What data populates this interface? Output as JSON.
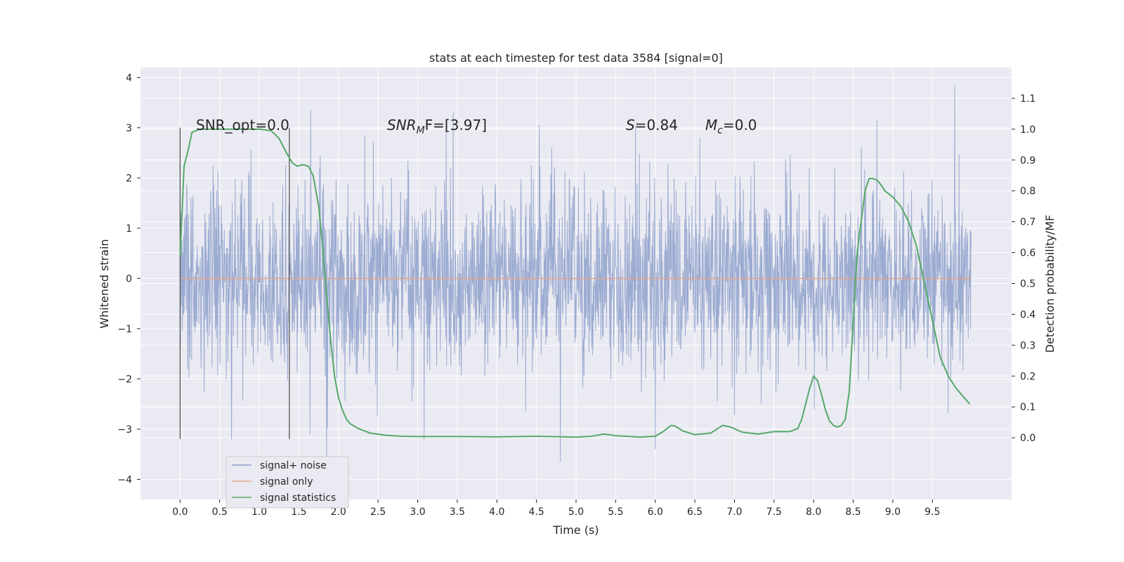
{
  "chart_data": {
    "type": "line",
    "title": "stats at each timestep for test data 3584 [signal=0]",
    "xlabel": "Time (s)",
    "ylabel": "Whitened strain",
    "y2label": "Detection probability/MF",
    "xlim": [
      -0.5,
      10.5
    ],
    "ylim": [
      -4.4,
      4.2
    ],
    "y2lim": [
      -0.2,
      1.2
    ],
    "grid": true,
    "legend_position": "lower-left",
    "x_ticks": [
      "0.0",
      "0.5",
      "1.0",
      "1.5",
      "2.0",
      "2.5",
      "3.0",
      "3.5",
      "4.0",
      "4.5",
      "5.0",
      "5.5",
      "6.0",
      "6.5",
      "7.0",
      "7.5",
      "8.0",
      "8.5",
      "9.0",
      "9.5"
    ],
    "y_ticks": [
      "4",
      "3",
      "2",
      "1",
      "0",
      "−1",
      "−2",
      "−3",
      "−4"
    ],
    "y2_ticks": [
      "1.1",
      "1.0",
      "0.9",
      "0.8",
      "0.7",
      "0.6",
      "0.5",
      "0.4",
      "0.3",
      "0.2",
      "0.1",
      "0.0"
    ],
    "annotations": {
      "snr_opt": "SNR_opt=0.0",
      "snr_mf_prefix": "SNR",
      "snr_mf_sub": "M",
      "snr_mf_suffix": "F=[3.97]",
      "s_prefix": "S",
      "s_suffix": "=0.84",
      "mc_prefix": "M",
      "mc_sub": "c",
      "mc_suffix": "=0.0"
    },
    "vertical_lines": [
      {
        "x": 0.0,
        "y_from": -3.2,
        "y_to": 3.0
      },
      {
        "x": 1.38,
        "y_from": -3.2,
        "y_to": 3.0
      }
    ],
    "series": [
      {
        "name": "signal+ noise",
        "color": "#8da0cb",
        "axis": "left",
        "kind": "noise",
        "x_range": [
          0.0,
          9.99
        ],
        "amplitude_std": 0.9,
        "peaks": [
          {
            "x": 1.85,
            "y": -4.0
          },
          {
            "x": 4.8,
            "y": -3.65
          },
          {
            "x": 9.78,
            "y": 3.85
          },
          {
            "x": 3.45,
            "y": 3.3
          },
          {
            "x": 1.65,
            "y": 3.35
          },
          {
            "x": 6.0,
            "y": -3.4
          },
          {
            "x": 5.75,
            "y": 3.05
          },
          {
            "x": 8.8,
            "y": 3.15
          }
        ]
      },
      {
        "name": "signal only",
        "color": "#e5a589",
        "axis": "left",
        "kind": "line",
        "x": [
          0.0,
          9.99
        ],
        "y": [
          0.0,
          0.0
        ]
      },
      {
        "name": "signal statistics",
        "color": "#55a868",
        "axis": "right",
        "kind": "line",
        "x": [
          0.0,
          0.05,
          0.1,
          0.15,
          0.25,
          0.4,
          0.6,
          0.8,
          1.0,
          1.15,
          1.25,
          1.35,
          1.42,
          1.48,
          1.55,
          1.62,
          1.68,
          1.75,
          1.8,
          1.85,
          1.9,
          1.95,
          2.0,
          2.05,
          2.1,
          2.15,
          2.25,
          2.4,
          2.6,
          2.8,
          3.0,
          3.5,
          4.0,
          4.5,
          5.0,
          5.2,
          5.35,
          5.5,
          5.8,
          6.0,
          6.1,
          6.2,
          6.25,
          6.35,
          6.5,
          6.7,
          6.85,
          6.95,
          7.1,
          7.3,
          7.5,
          7.7,
          7.8,
          7.85,
          7.9,
          7.95,
          8.0,
          8.05,
          8.1,
          8.15,
          8.2,
          8.25,
          8.3,
          8.35,
          8.4,
          8.45,
          8.5,
          8.55,
          8.6,
          8.65,
          8.7,
          8.75,
          8.8,
          8.85,
          8.9,
          9.0,
          9.1,
          9.2,
          9.3,
          9.4,
          9.5,
          9.6,
          9.7,
          9.8,
          9.9,
          9.97
        ],
        "y": [
          0.59,
          0.88,
          0.93,
          0.99,
          1.0,
          1.0,
          1.0,
          1.0,
          1.0,
          0.995,
          0.97,
          0.92,
          0.89,
          0.88,
          0.885,
          0.88,
          0.85,
          0.75,
          0.62,
          0.46,
          0.32,
          0.2,
          0.13,
          0.09,
          0.06,
          0.045,
          0.03,
          0.015,
          0.008,
          0.005,
          0.004,
          0.004,
          0.003,
          0.005,
          0.002,
          0.005,
          0.012,
          0.007,
          0.002,
          0.005,
          0.02,
          0.04,
          0.038,
          0.022,
          0.01,
          0.015,
          0.04,
          0.035,
          0.018,
          0.012,
          0.02,
          0.02,
          0.03,
          0.06,
          0.11,
          0.16,
          0.2,
          0.185,
          0.14,
          0.09,
          0.055,
          0.04,
          0.035,
          0.04,
          0.06,
          0.15,
          0.38,
          0.6,
          0.7,
          0.8,
          0.84,
          0.84,
          0.835,
          0.82,
          0.8,
          0.78,
          0.75,
          0.7,
          0.62,
          0.5,
          0.38,
          0.26,
          0.2,
          0.16,
          0.13,
          0.11
        ]
      }
    ]
  }
}
